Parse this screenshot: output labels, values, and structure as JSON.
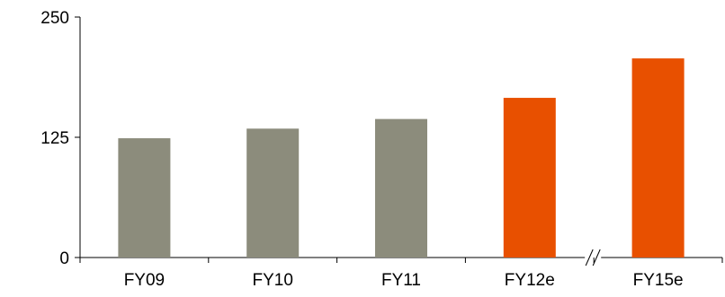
{
  "chart_data": {
    "type": "bar",
    "categories": [
      "FY09",
      "FY10",
      "FY11",
      "FY12e",
      "FY15e"
    ],
    "values": [
      124,
      134,
      144,
      166,
      207
    ],
    "bar_colors": [
      "#8c8c7c",
      "#8c8c7c",
      "#8c8c7c",
      "#e85000",
      "#e85000"
    ],
    "ylim": [
      0,
      250
    ],
    "yticks": [
      0,
      125,
      250
    ],
    "axis_break_between": [
      "FY12e",
      "FY15e"
    ],
    "title": "",
    "xlabel": "",
    "ylabel": "",
    "grid": false,
    "legend": "none"
  }
}
